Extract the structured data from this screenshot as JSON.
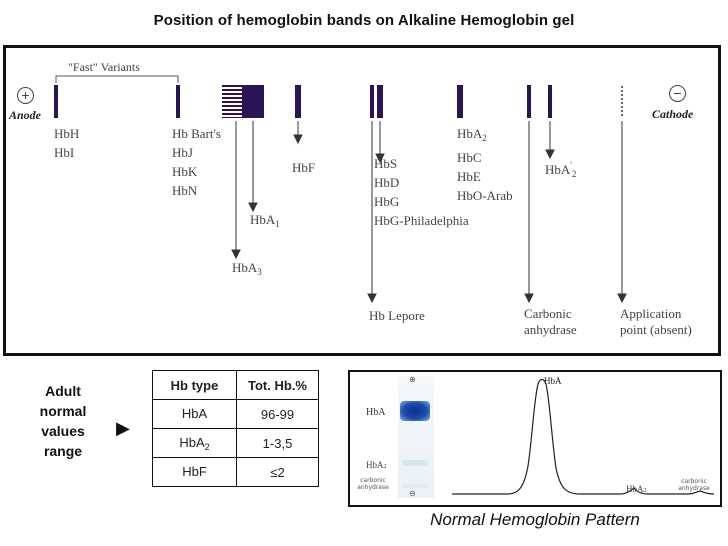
{
  "title": "Position of hemoglobin bands on Alkaline Hemoglobin gel",
  "gel": {
    "anode_symbol": "+",
    "anode_label": "Anode",
    "cathode_symbol": "−",
    "cathode_label": "Cathode",
    "fast_variants": "\"Fast\" Variants",
    "groups": {
      "hbh": [
        "HbH",
        "HbI"
      ],
      "bart": [
        "Hb Bart's",
        "HbJ",
        "HbK",
        "HbN"
      ],
      "hba1": "HbA",
      "hba1_sub": "1",
      "hba3": "HbA",
      "hba3_sub": "3",
      "hbf": "HbF",
      "hbs": [
        "HbS",
        "HbD",
        "HbG",
        "HbG-Philadelphia"
      ],
      "hblepore": "Hb Lepore",
      "hba2": "HbA",
      "hba2_sub": "2",
      "hbce": [
        "HbC",
        "HbE",
        "HbO-Arab"
      ],
      "hba2p": "HbA",
      "hba2p_sub": "2",
      "hba2p_sup": "'",
      "carbonic": [
        "Carbonic",
        "anhydrase"
      ],
      "application": [
        "Application",
        "point (absent)"
      ]
    }
  },
  "normal_values": {
    "label": [
      "Adult",
      "normal",
      "values",
      "range"
    ],
    "arrow": "▶",
    "headers": [
      "Hb type",
      "Tot. Hb.%"
    ],
    "rows": [
      {
        "type": "HbA",
        "sub": "",
        "value": "96-99"
      },
      {
        "type": "HbA",
        "sub": "2",
        "value": "1-3,5"
      },
      {
        "type": "HbF",
        "sub": "",
        "value": "≤2"
      }
    ]
  },
  "pattern": {
    "caption": "Normal Hemoglobin Pattern",
    "strip_top": "⊕",
    "strip_bottom": "⊖",
    "strip_hba": "HbA",
    "strip_hba2": "HbA",
    "strip_hba2_sub": "2",
    "strip_ca": [
      "carbonic",
      "anhydrase"
    ],
    "peak_hba": "HbA",
    "peak_hba2": "HbA",
    "peak_hba2_sub": "2",
    "peak_ca": [
      "carbonic",
      "anhydrase"
    ]
  }
}
